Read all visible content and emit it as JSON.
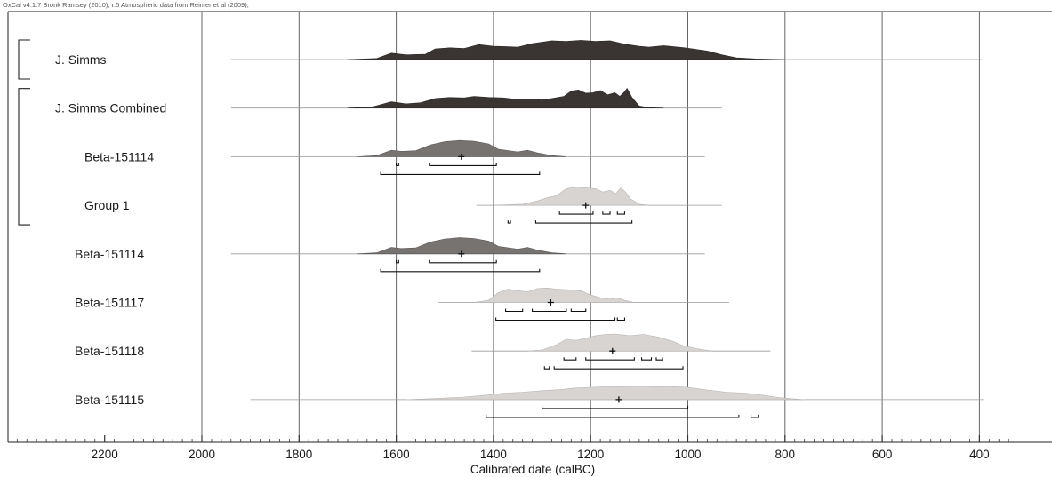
{
  "credit_text": "OxCal v4.1.7 Bronk Ramsey (2010); r:5 Atmospheric data from Reimer et al (2009);",
  "chart_data": {
    "type": "area",
    "title": "",
    "xlabel": "Calibrated date (calBC)",
    "ylabel": "",
    "x_axis_direction": "decreasing to the right",
    "xlim": [
      2400,
      330
    ],
    "x_ticks": [
      2200,
      2000,
      1800,
      1600,
      1400,
      1200,
      1000,
      800,
      600,
      400
    ],
    "grid": true,
    "brackets": [
      {
        "from_row": 0,
        "to_row": 0
      },
      {
        "from_row": 1,
        "to_row": 3
      }
    ],
    "colors": {
      "dark": "#3a3533",
      "medium": "#777371",
      "light": "#d8d4d2"
    },
    "rows": [
      {
        "label": "J. Simms",
        "style": "dark",
        "line_range": [
          1940,
          395
        ],
        "shape": [
          [
            1700,
            0
          ],
          [
            1640,
            0.05
          ],
          [
            1610,
            0.3
          ],
          [
            1580,
            0.22
          ],
          [
            1540,
            0.25
          ],
          [
            1520,
            0.5
          ],
          [
            1490,
            0.55
          ],
          [
            1460,
            0.52
          ],
          [
            1430,
            0.7
          ],
          [
            1400,
            0.62
          ],
          [
            1370,
            0.6
          ],
          [
            1350,
            0.58
          ],
          [
            1320,
            0.75
          ],
          [
            1280,
            0.88
          ],
          [
            1250,
            0.85
          ],
          [
            1220,
            0.9
          ],
          [
            1190,
            0.85
          ],
          [
            1160,
            0.88
          ],
          [
            1130,
            0.72
          ],
          [
            1100,
            0.62
          ],
          [
            1080,
            0.58
          ],
          [
            1050,
            0.65
          ],
          [
            1010,
            0.56
          ],
          [
            990,
            0.5
          ],
          [
            960,
            0.4
          ],
          [
            930,
            0.22
          ],
          [
            900,
            0.08
          ],
          [
            860,
            0.03
          ],
          [
            800,
            0
          ]
        ],
        "hpd_68": [],
        "hpd_95": [],
        "mean": null
      },
      {
        "label": "J. Simms Combined",
        "style": "dark",
        "line_range": [
          1940,
          930
        ],
        "shape": [
          [
            1700,
            0
          ],
          [
            1650,
            0.05
          ],
          [
            1610,
            0.3
          ],
          [
            1580,
            0.2
          ],
          [
            1550,
            0.25
          ],
          [
            1520,
            0.45
          ],
          [
            1490,
            0.5
          ],
          [
            1460,
            0.48
          ],
          [
            1440,
            0.55
          ],
          [
            1410,
            0.5
          ],
          [
            1380,
            0.48
          ],
          [
            1350,
            0.4
          ],
          [
            1320,
            0.42
          ],
          [
            1300,
            0.38
          ],
          [
            1280,
            0.45
          ],
          [
            1255,
            0.55
          ],
          [
            1240,
            0.8
          ],
          [
            1225,
            0.85
          ],
          [
            1210,
            0.7
          ],
          [
            1195,
            0.72
          ],
          [
            1180,
            0.82
          ],
          [
            1165,
            0.62
          ],
          [
            1150,
            0.72
          ],
          [
            1140,
            0.55
          ],
          [
            1132,
            0.72
          ],
          [
            1125,
            0.92
          ],
          [
            1115,
            0.5
          ],
          [
            1100,
            0.1
          ],
          [
            1080,
            0.02
          ],
          [
            1050,
            0
          ]
        ],
        "hpd_68": [],
        "hpd_95": [],
        "mean": null
      },
      {
        "label": "Beta-151114",
        "style": "medium",
        "line_range": [
          1940,
          965
        ],
        "shape": [
          [
            1680,
            0
          ],
          [
            1640,
            0.05
          ],
          [
            1610,
            0.3
          ],
          [
            1590,
            0.25
          ],
          [
            1560,
            0.28
          ],
          [
            1530,
            0.55
          ],
          [
            1500,
            0.7
          ],
          [
            1470,
            0.76
          ],
          [
            1440,
            0.72
          ],
          [
            1410,
            0.6
          ],
          [
            1390,
            0.35
          ],
          [
            1350,
            0.22
          ],
          [
            1330,
            0.3
          ],
          [
            1310,
            0.18
          ],
          [
            1280,
            0.05
          ],
          [
            1250,
            0
          ]
        ],
        "hpd_68": [
          [
            1600,
            1595
          ],
          [
            1532,
            1394
          ]
        ],
        "hpd_95": [
          [
            1632,
            1305
          ]
        ],
        "mean": 1466
      },
      {
        "label": "Group 1",
        "style": "light",
        "line_range": [
          1435,
          930
        ],
        "shape": [
          [
            1400,
            0
          ],
          [
            1340,
            0.05
          ],
          [
            1310,
            0.2
          ],
          [
            1290,
            0.35
          ],
          [
            1270,
            0.45
          ],
          [
            1250,
            0.78
          ],
          [
            1230,
            0.85
          ],
          [
            1210,
            0.82
          ],
          [
            1190,
            0.78
          ],
          [
            1175,
            0.62
          ],
          [
            1160,
            0.7
          ],
          [
            1148,
            0.55
          ],
          [
            1138,
            0.82
          ],
          [
            1128,
            0.62
          ],
          [
            1118,
            0.3
          ],
          [
            1100,
            0.05
          ],
          [
            1080,
            0
          ]
        ],
        "hpd_68": [
          [
            1264,
            1195
          ],
          [
            1175,
            1160
          ],
          [
            1145,
            1130
          ]
        ],
        "hpd_95": [
          [
            1370,
            1365
          ],
          [
            1313,
            1115
          ]
        ],
        "mean": 1210
      },
      {
        "label": "Beta-151114",
        "style": "medium",
        "line_range": [
          1940,
          965
        ],
        "shape": [
          [
            1680,
            0
          ],
          [
            1640,
            0.05
          ],
          [
            1610,
            0.3
          ],
          [
            1590,
            0.25
          ],
          [
            1560,
            0.28
          ],
          [
            1530,
            0.55
          ],
          [
            1500,
            0.7
          ],
          [
            1470,
            0.76
          ],
          [
            1440,
            0.72
          ],
          [
            1410,
            0.6
          ],
          [
            1390,
            0.35
          ],
          [
            1350,
            0.22
          ],
          [
            1330,
            0.3
          ],
          [
            1310,
            0.18
          ],
          [
            1280,
            0.05
          ],
          [
            1250,
            0
          ]
        ],
        "hpd_68": [
          [
            1600,
            1595
          ],
          [
            1532,
            1394
          ]
        ],
        "hpd_95": [
          [
            1632,
            1305
          ]
        ],
        "mean": 1466
      },
      {
        "label": "Beta-151117",
        "style": "light",
        "line_range": [
          1515,
          915
        ],
        "shape": [
          [
            1440,
            0
          ],
          [
            1410,
            0.1
          ],
          [
            1390,
            0.45
          ],
          [
            1370,
            0.62
          ],
          [
            1350,
            0.55
          ],
          [
            1330,
            0.5
          ],
          [
            1310,
            0.65
          ],
          [
            1290,
            0.68
          ],
          [
            1270,
            0.62
          ],
          [
            1250,
            0.6
          ],
          [
            1220,
            0.55
          ],
          [
            1200,
            0.35
          ],
          [
            1180,
            0.22
          ],
          [
            1160,
            0.15
          ],
          [
            1145,
            0.22
          ],
          [
            1130,
            0.1
          ],
          [
            1110,
            0
          ]
        ],
        "hpd_68": [
          [
            1375,
            1340
          ],
          [
            1320,
            1250
          ],
          [
            1240,
            1210
          ]
        ],
        "hpd_95": [
          [
            1395,
            1150
          ],
          [
            1145,
            1130
          ]
        ],
        "mean": 1282
      },
      {
        "label": "Beta-151118",
        "style": "light",
        "line_range": [
          1445,
          830
        ],
        "shape": [
          [
            1330,
            0
          ],
          [
            1300,
            0.05
          ],
          [
            1270,
            0.3
          ],
          [
            1250,
            0.55
          ],
          [
            1230,
            0.5
          ],
          [
            1210,
            0.6
          ],
          [
            1190,
            0.72
          ],
          [
            1170,
            0.78
          ],
          [
            1150,
            0.8
          ],
          [
            1120,
            0.72
          ],
          [
            1090,
            0.78
          ],
          [
            1060,
            0.65
          ],
          [
            1030,
            0.45
          ],
          [
            1010,
            0.25
          ],
          [
            980,
            0.1
          ],
          [
            950,
            0
          ]
        ],
        "hpd_68": [
          [
            1255,
            1230
          ],
          [
            1210,
            1110
          ],
          [
            1095,
            1075
          ],
          [
            1065,
            1052
          ]
        ],
        "hpd_95": [
          [
            1295,
            1285
          ],
          [
            1275,
            1010
          ]
        ],
        "mean": 1155
      },
      {
        "label": "Beta-151115",
        "style": "light",
        "line_range": [
          1900,
          392
        ],
        "shape": [
          [
            1580,
            0
          ],
          [
            1520,
            0.05
          ],
          [
            1460,
            0.12
          ],
          [
            1420,
            0.2
          ],
          [
            1380,
            0.3
          ],
          [
            1340,
            0.35
          ],
          [
            1300,
            0.42
          ],
          [
            1260,
            0.48
          ],
          [
            1230,
            0.55
          ],
          [
            1200,
            0.58
          ],
          [
            1160,
            0.62
          ],
          [
            1120,
            0.6
          ],
          [
            1080,
            0.6
          ],
          [
            1040,
            0.62
          ],
          [
            1000,
            0.58
          ],
          [
            960,
            0.45
          ],
          [
            920,
            0.35
          ],
          [
            880,
            0.3
          ],
          [
            850,
            0.22
          ],
          [
            820,
            0.12
          ],
          [
            790,
            0.05
          ],
          [
            760,
            0
          ]
        ],
        "hpd_68": [
          [
            1300,
            1000
          ]
        ],
        "hpd_95": [
          [
            1415,
            895
          ],
          [
            870,
            855
          ]
        ],
        "mean": 1142
      }
    ]
  }
}
